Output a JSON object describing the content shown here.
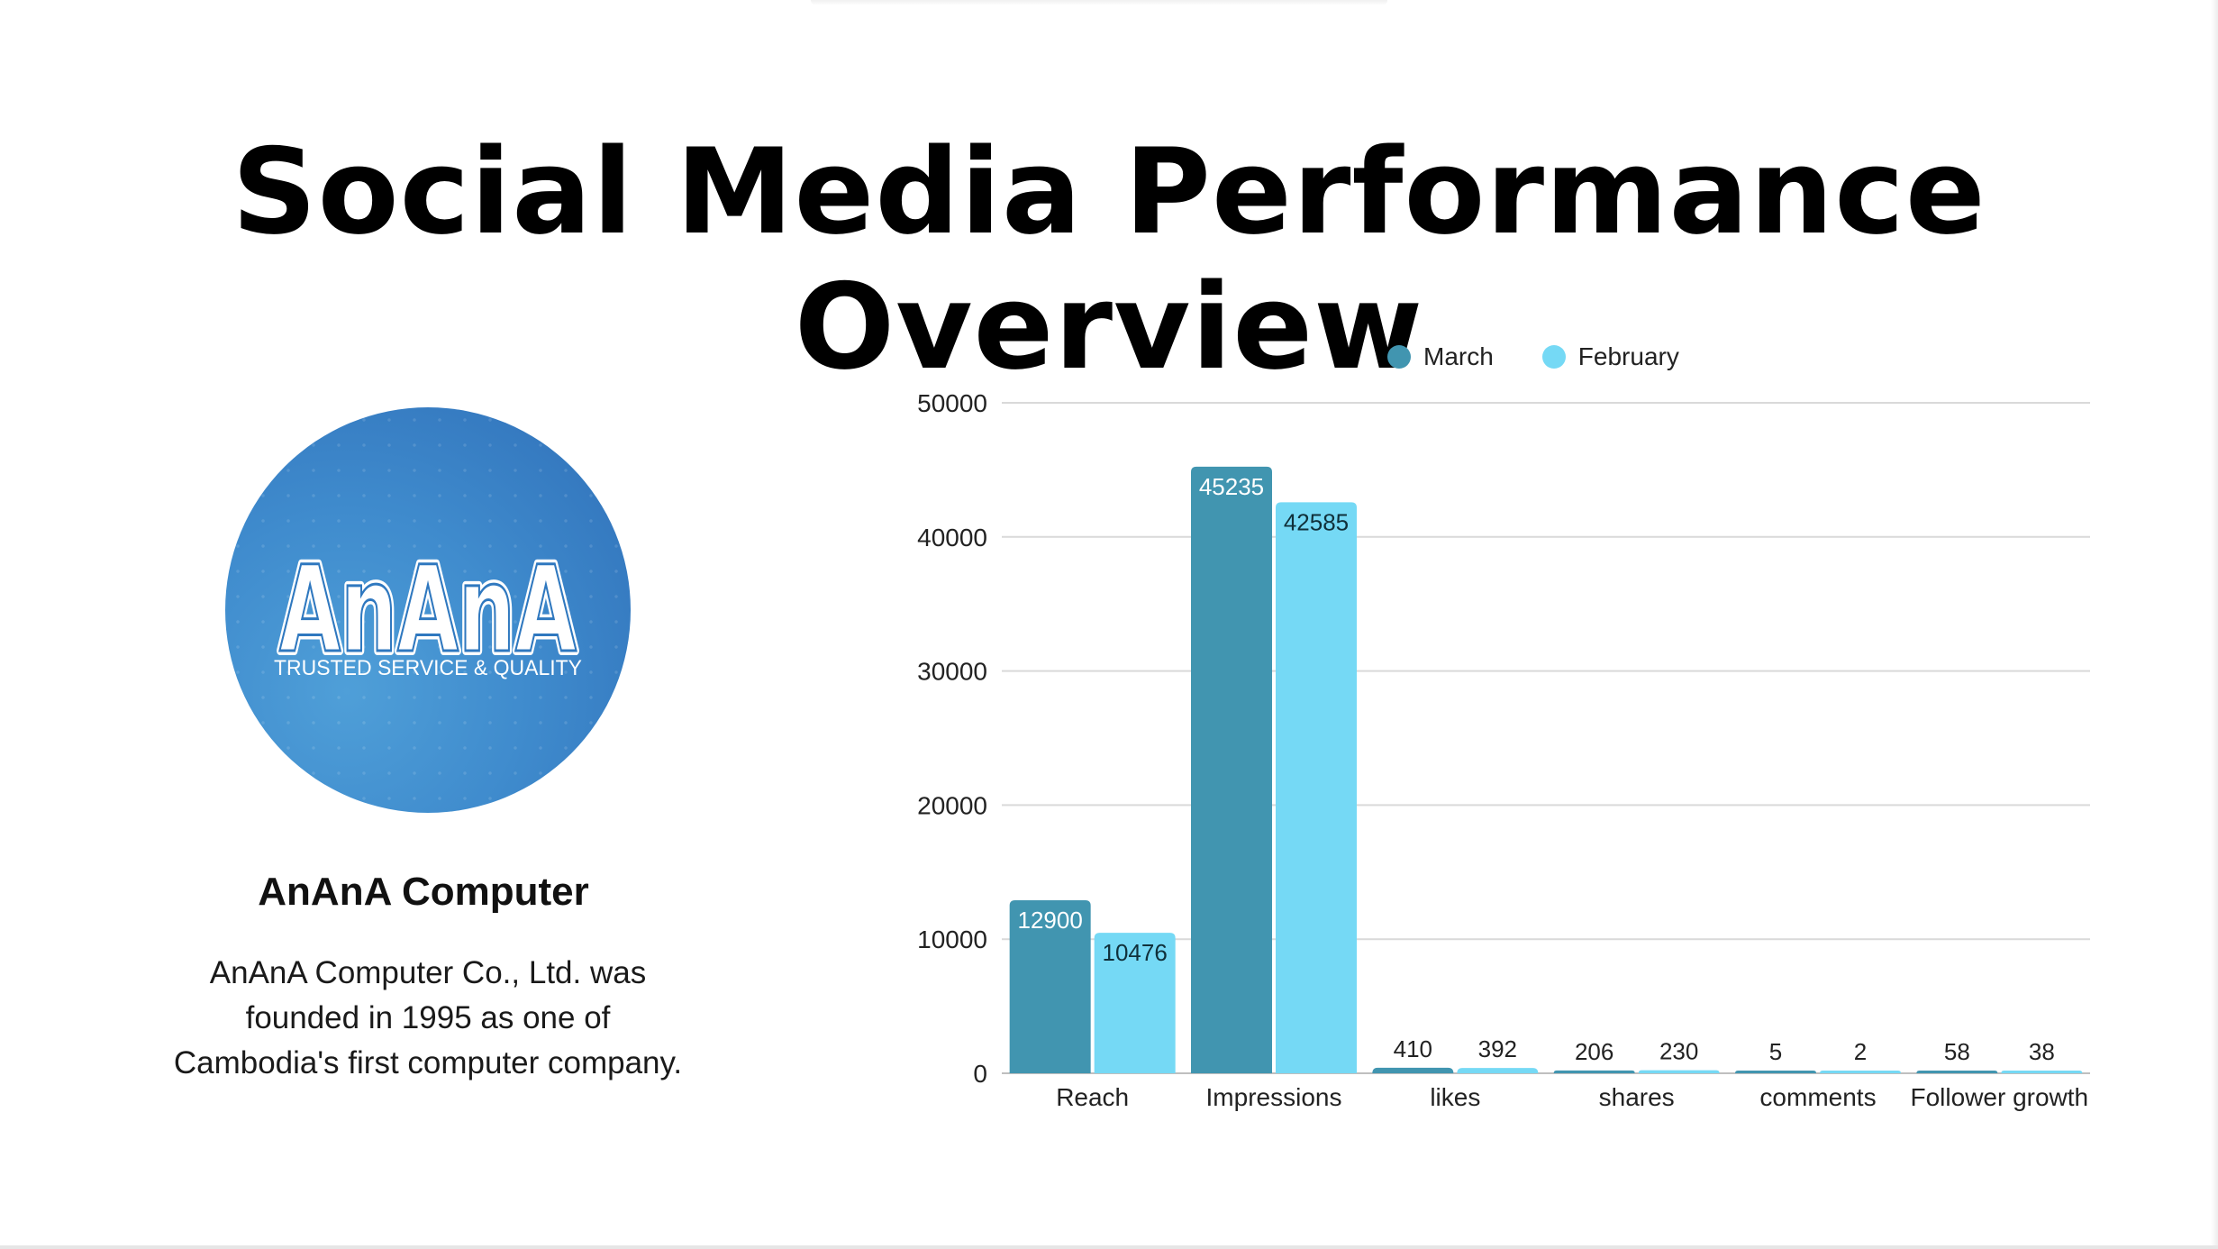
{
  "page": {
    "title": "Social Media Performance Overview"
  },
  "company": {
    "logo_text": "AnAnA",
    "logo_tagline": "TRUSTED SERVICE & QUALITY",
    "name": "AnAnA Computer",
    "description": "AnAnA Computer Co., Ltd. was founded in 1995 as one of Cambodia's first computer company."
  },
  "colors": {
    "march": "#4195b0",
    "february": "#75d9f5",
    "grid": "#d9d9d9"
  },
  "chart_data": {
    "type": "bar",
    "categories": [
      "Reach",
      "Impressions",
      "likes",
      "shares",
      "comments",
      "Follower growth"
    ],
    "series": [
      {
        "name": "March",
        "values": [
          12900,
          45235,
          410,
          206,
          5,
          58
        ]
      },
      {
        "name": "February",
        "values": [
          10476,
          42585,
          392,
          230,
          2,
          38
        ]
      }
    ],
    "ylim": [
      0,
      50000
    ],
    "yticks": [
      0,
      10000,
      20000,
      30000,
      40000,
      50000
    ],
    "grid": true,
    "legend_position": "top"
  }
}
